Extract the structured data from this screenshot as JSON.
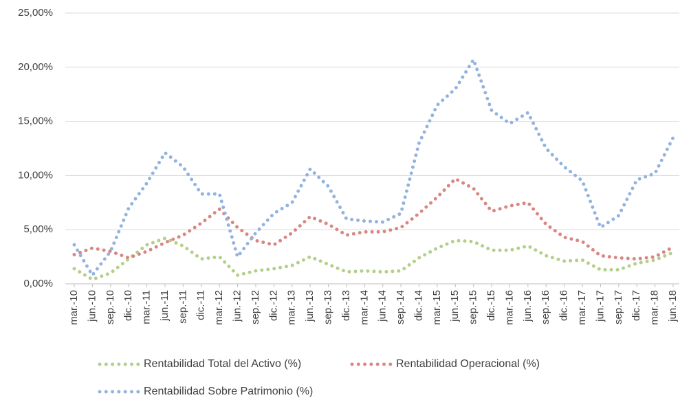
{
  "chart_data": {
    "type": "line",
    "categories": [
      "mar.-10",
      "jun.-10",
      "sep.-10",
      "dic.-10",
      "mar.-11",
      "jun.-11",
      "sep.-11",
      "dic.-11",
      "mar.-12",
      "jun.-12",
      "sep.-12",
      "dic.-12",
      "mar.-13",
      "jun.-13",
      "sep.-13",
      "dic.-13",
      "mar.-14",
      "jun.-14",
      "sep.-14",
      "dic.-14",
      "mar.-15",
      "jun.-15",
      "sep.-15",
      "dic.-15",
      "mar.-16",
      "jun.-16",
      "sep.-16",
      "dic.-16",
      "mar.-17",
      "jun.-17",
      "sep.-17",
      "dic.-17",
      "mar.-18",
      "jun.-18"
    ],
    "series": [
      {
        "name": "Rentabilidad Total del Activo (%)",
        "color": "#b3cf88",
        "values": [
          1.4,
          0.4,
          1.0,
          2.3,
          3.6,
          4.2,
          3.5,
          2.3,
          2.5,
          0.8,
          1.2,
          1.4,
          1.7,
          2.5,
          1.8,
          1.1,
          1.2,
          1.1,
          1.2,
          2.4,
          3.3,
          4.0,
          3.9,
          3.1,
          3.1,
          3.5,
          2.6,
          2.1,
          2.2,
          1.3,
          1.3,
          1.9,
          2.2,
          2.9
        ]
      },
      {
        "name": "Rentabilidad Operacional (%)",
        "color": "#d98683",
        "values": [
          2.7,
          3.3,
          3.0,
          2.4,
          3.0,
          3.8,
          4.5,
          5.6,
          6.9,
          5.2,
          4.0,
          3.6,
          4.7,
          6.2,
          5.5,
          4.5,
          4.8,
          4.8,
          5.2,
          6.5,
          8.0,
          9.7,
          8.8,
          6.7,
          7.2,
          7.5,
          5.5,
          4.3,
          3.9,
          2.6,
          2.4,
          2.3,
          2.5,
          3.4
        ]
      },
      {
        "name": "Rentabilidad Sobre Patrimonio (%)",
        "color": "#93b3df",
        "values": [
          3.6,
          0.8,
          3.0,
          7.0,
          9.3,
          12.1,
          10.8,
          8.3,
          8.3,
          2.5,
          4.7,
          6.5,
          7.5,
          10.6,
          9.0,
          6.0,
          5.8,
          5.7,
          6.5,
          13.0,
          16.5,
          18.0,
          20.7,
          16.0,
          14.8,
          15.8,
          12.5,
          10.8,
          9.5,
          5.2,
          6.3,
          9.6,
          10.2,
          13.5
        ]
      }
    ],
    "ylim": [
      0,
      25
    ],
    "yticks": [
      {
        "value": 0,
        "label": "0,00%"
      },
      {
        "value": 5,
        "label": "5,00%"
      },
      {
        "value": 10,
        "label": "10,00%"
      },
      {
        "value": 15,
        "label": "15,00%"
      },
      {
        "value": 20,
        "label": "20,00%"
      },
      {
        "value": 25,
        "label": "25,00%"
      }
    ],
    "grid": true
  }
}
